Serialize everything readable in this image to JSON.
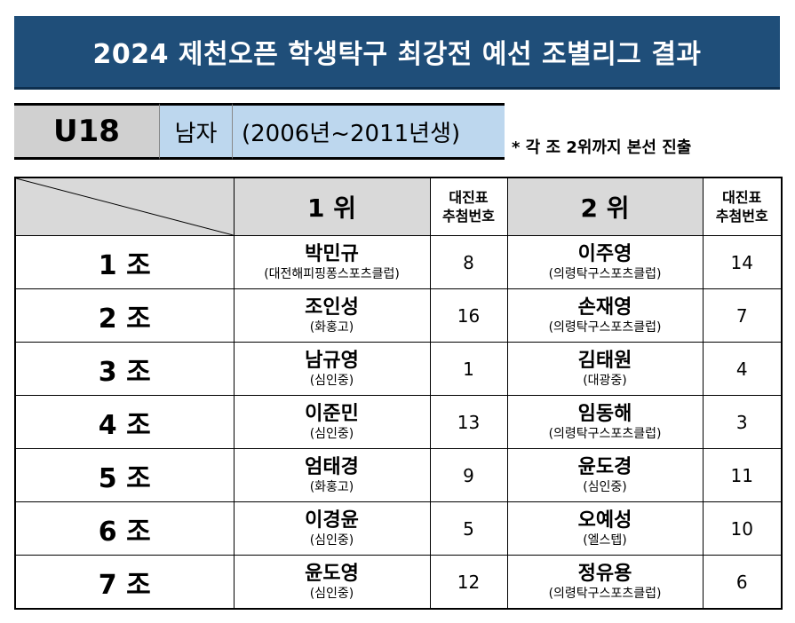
{
  "title": "2024 제천오픈 학생탁구 최강전 예선 조별리그 결과",
  "category": {
    "age": "U18",
    "gender": "남자",
    "years": "(2006년~2011년생)"
  },
  "note": "* 각 조 2위까지 본선 진출",
  "headers": {
    "first": "1 위",
    "second": "2 위",
    "draw_line1": "대진표",
    "draw_line2": "추첨번호"
  },
  "groups": [
    {
      "group": "1 조",
      "first": {
        "name": "박민규",
        "club": "(대전해피핑퐁스포츠클럽)",
        "draw": "8"
      },
      "second": {
        "name": "이주영",
        "club": "(의령탁구스포츠클럽)",
        "draw": "14"
      }
    },
    {
      "group": "2 조",
      "first": {
        "name": "조인성",
        "club": "(화홍고)",
        "draw": "16"
      },
      "second": {
        "name": "손재영",
        "club": "(의령탁구스포츠클럽)",
        "draw": "7"
      }
    },
    {
      "group": "3 조",
      "first": {
        "name": "남규영",
        "club": "(심인중)",
        "draw": "1"
      },
      "second": {
        "name": "김태원",
        "club": "(대광중)",
        "draw": "4"
      }
    },
    {
      "group": "4 조",
      "first": {
        "name": "이준민",
        "club": "(심인중)",
        "draw": "13"
      },
      "second": {
        "name": "임동해",
        "club": "(의령탁구스포츠클럽)",
        "draw": "3"
      }
    },
    {
      "group": "5 조",
      "first": {
        "name": "엄태경",
        "club": "(화홍고)",
        "draw": "9"
      },
      "second": {
        "name": "윤도경",
        "club": "(심인중)",
        "draw": "11"
      }
    },
    {
      "group": "6 조",
      "first": {
        "name": "이경윤",
        "club": "(심인중)",
        "draw": "5"
      },
      "second": {
        "name": "오예성",
        "club": "(엘스텝)",
        "draw": "10"
      }
    },
    {
      "group": "7 조",
      "first": {
        "name": "윤도영",
        "club": "(심인중)",
        "draw": "12"
      },
      "second": {
        "name": "정유용",
        "club": "(의령탁구스포츠클럽)",
        "draw": "6"
      }
    }
  ]
}
